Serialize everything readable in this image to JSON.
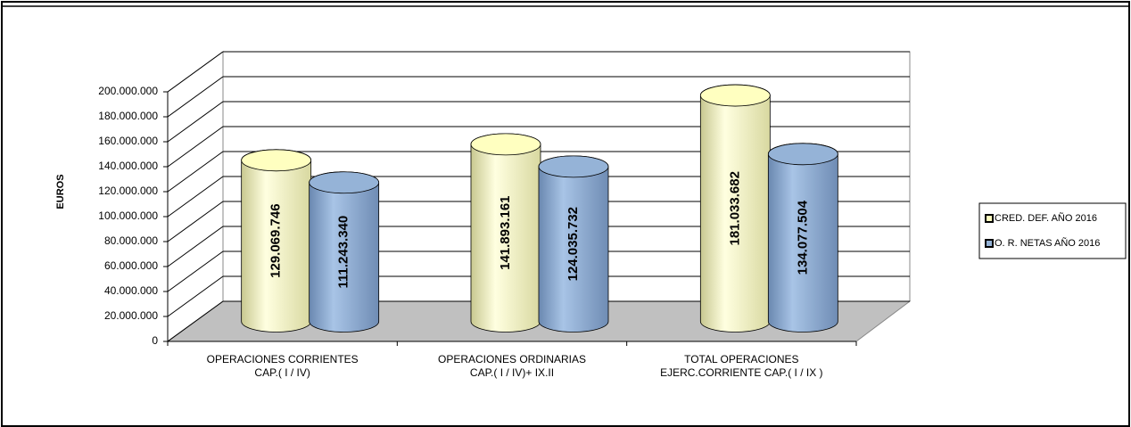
{
  "chart_data": {
    "type": "bar3d",
    "ylabel": "EUROS",
    "categories": [
      [
        "OPERACIONES CORRIENTES",
        "CAP.( I / IV)"
      ],
      [
        "OPERACIONES ORDINARIAS",
        "CAP.( I / IV)+ IX.II"
      ],
      [
        "TOTAL OPERACIONES",
        "EJERC.CORRIENTE CAP.( I / IX )"
      ]
    ],
    "series": [
      {
        "name": "CRED. DEF. AÑO 2016",
        "color": "#ffffc0",
        "values": [
          129069746,
          141893161,
          181033682
        ],
        "value_labels": [
          "129.069.746",
          "141.893.161",
          "181.033.682"
        ]
      },
      {
        "name": "O. R. NETAS AÑO 2016",
        "color": "#95b3d7",
        "values": [
          111243340,
          124035732,
          134077504
        ],
        "value_labels": [
          "111.243.340",
          "124.035.732",
          "134.077.504"
        ]
      }
    ],
    "ylim": [
      0,
      200000000
    ],
    "yticks": [
      0,
      {
        "value": 20000000,
        "label": "20.000.000"
      },
      {
        "value": 40000000,
        "label": "40.000.000"
      },
      {
        "value": 60000000,
        "label": "60.000.000"
      },
      {
        "value": 80000000,
        "label": "80.000.000"
      },
      {
        "value": 100000000,
        "label": "100.000.000"
      },
      {
        "value": 120000000,
        "label": "120.000.000"
      },
      {
        "value": 140000000,
        "label": "140.000.000"
      },
      {
        "value": 160000000,
        "label": "160.000.000"
      },
      {
        "value": 180000000,
        "label": "180.000.000"
      },
      {
        "value": 200000000,
        "label": "200.000.000"
      }
    ],
    "grid": true,
    "legend": "right"
  }
}
